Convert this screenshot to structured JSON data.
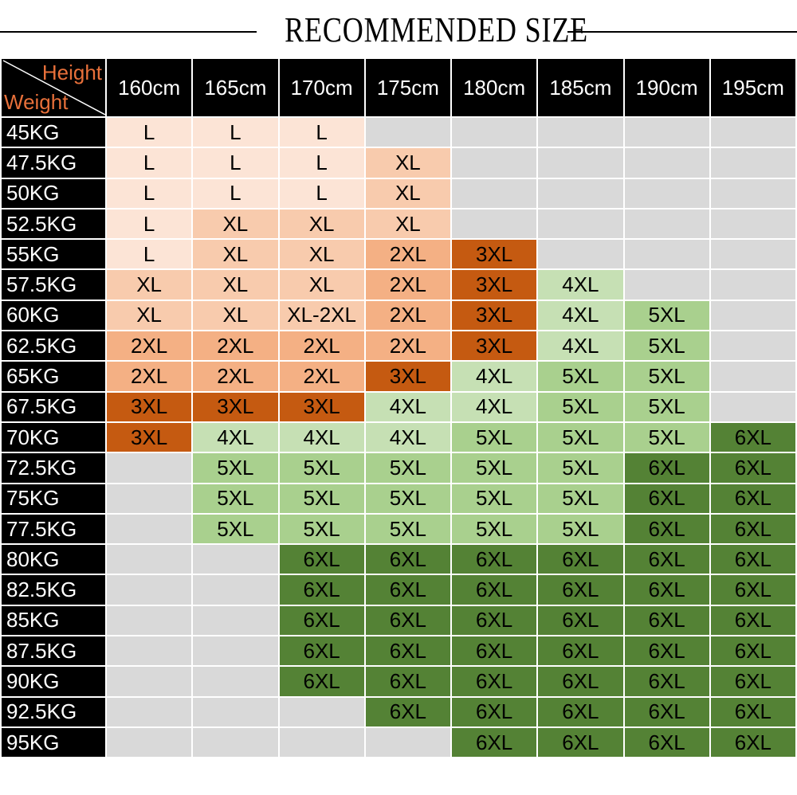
{
  "title": "RECOMMENDED SIZE",
  "corner": {
    "height_label": "Height",
    "weight_label": "Weight"
  },
  "colors": {
    "header_bg": "#000000",
    "corner_label": "#e8703a",
    "empty": "#d9d9d9",
    "L": "#fce4d6",
    "XL": "#f8cbad",
    "2XL": "#f4b084",
    "3XL": "#c55a11",
    "4XL": "#c6e0b4",
    "5XL": "#a9d08e",
    "6XL": "#548235"
  },
  "heights": [
    "160cm",
    "165cm",
    "170cm",
    "175cm",
    "180cm",
    "185cm",
    "190cm",
    "195cm"
  ],
  "rows": [
    {
      "weight": "45KG",
      "sizes": [
        "L",
        "L",
        "L",
        "",
        "",
        "",
        "",
        ""
      ]
    },
    {
      "weight": "47.5KG",
      "sizes": [
        "L",
        "L",
        "L",
        "XL",
        "",
        "",
        "",
        ""
      ]
    },
    {
      "weight": "50KG",
      "sizes": [
        "L",
        "L",
        "L",
        "XL",
        "",
        "",
        "",
        ""
      ]
    },
    {
      "weight": "52.5KG",
      "sizes": [
        "L",
        "XL",
        "XL",
        "XL",
        "",
        "",
        "",
        ""
      ]
    },
    {
      "weight": "55KG",
      "sizes": [
        "L",
        "XL",
        "XL",
        "2XL",
        "3XL",
        "",
        "",
        ""
      ]
    },
    {
      "weight": "57.5KG",
      "sizes": [
        "XL",
        "XL",
        "XL",
        "2XL",
        "3XL",
        "4XL",
        "",
        ""
      ]
    },
    {
      "weight": "60KG",
      "sizes": [
        "XL",
        "XL",
        "XL-2XL",
        "2XL",
        "3XL",
        "4XL",
        "5XL",
        ""
      ]
    },
    {
      "weight": "62.5KG",
      "sizes": [
        "2XL",
        "2XL",
        "2XL",
        "2XL",
        "3XL",
        "4XL",
        "5XL",
        ""
      ]
    },
    {
      "weight": "65KG",
      "sizes": [
        "2XL",
        "2XL",
        "2XL",
        "3XL",
        "4XL",
        "5XL",
        "5XL",
        ""
      ]
    },
    {
      "weight": "67.5KG",
      "sizes": [
        "3XL",
        "3XL",
        "3XL",
        "4XL",
        "4XL",
        "5XL",
        "5XL",
        ""
      ]
    },
    {
      "weight": "70KG",
      "sizes": [
        "3XL",
        "4XL",
        "4XL",
        "4XL",
        "5XL",
        "5XL",
        "5XL",
        "6XL"
      ]
    },
    {
      "weight": "72.5KG",
      "sizes": [
        "",
        "5XL",
        "5XL",
        "5XL",
        "5XL",
        "5XL",
        "6XL",
        "6XL"
      ]
    },
    {
      "weight": "75KG",
      "sizes": [
        "",
        "5XL",
        "5XL",
        "5XL",
        "5XL",
        "5XL",
        "6XL",
        "6XL"
      ]
    },
    {
      "weight": "77.5KG",
      "sizes": [
        "",
        "5XL",
        "5XL",
        "5XL",
        "5XL",
        "5XL",
        "6XL",
        "6XL"
      ]
    },
    {
      "weight": "80KG",
      "sizes": [
        "",
        "",
        "6XL",
        "6XL",
        "6XL",
        "6XL",
        "6XL",
        "6XL"
      ]
    },
    {
      "weight": "82.5KG",
      "sizes": [
        "",
        "",
        "6XL",
        "6XL",
        "6XL",
        "6XL",
        "6XL",
        "6XL"
      ]
    },
    {
      "weight": "85KG",
      "sizes": [
        "",
        "",
        "6XL",
        "6XL",
        "6XL",
        "6XL",
        "6XL",
        "6XL"
      ]
    },
    {
      "weight": "87.5KG",
      "sizes": [
        "",
        "",
        "6XL",
        "6XL",
        "6XL",
        "6XL",
        "6XL",
        "6XL"
      ]
    },
    {
      "weight": "90KG",
      "sizes": [
        "",
        "",
        "6XL",
        "6XL",
        "6XL",
        "6XL",
        "6XL",
        "6XL"
      ]
    },
    {
      "weight": "92.5KG",
      "sizes": [
        "",
        "",
        "",
        "6XL",
        "6XL",
        "6XL",
        "6XL",
        "6XL"
      ]
    },
    {
      "weight": "95KG",
      "sizes": [
        "",
        "",
        "",
        "",
        "6XL",
        "6XL",
        "6XL",
        "6XL"
      ]
    }
  ]
}
